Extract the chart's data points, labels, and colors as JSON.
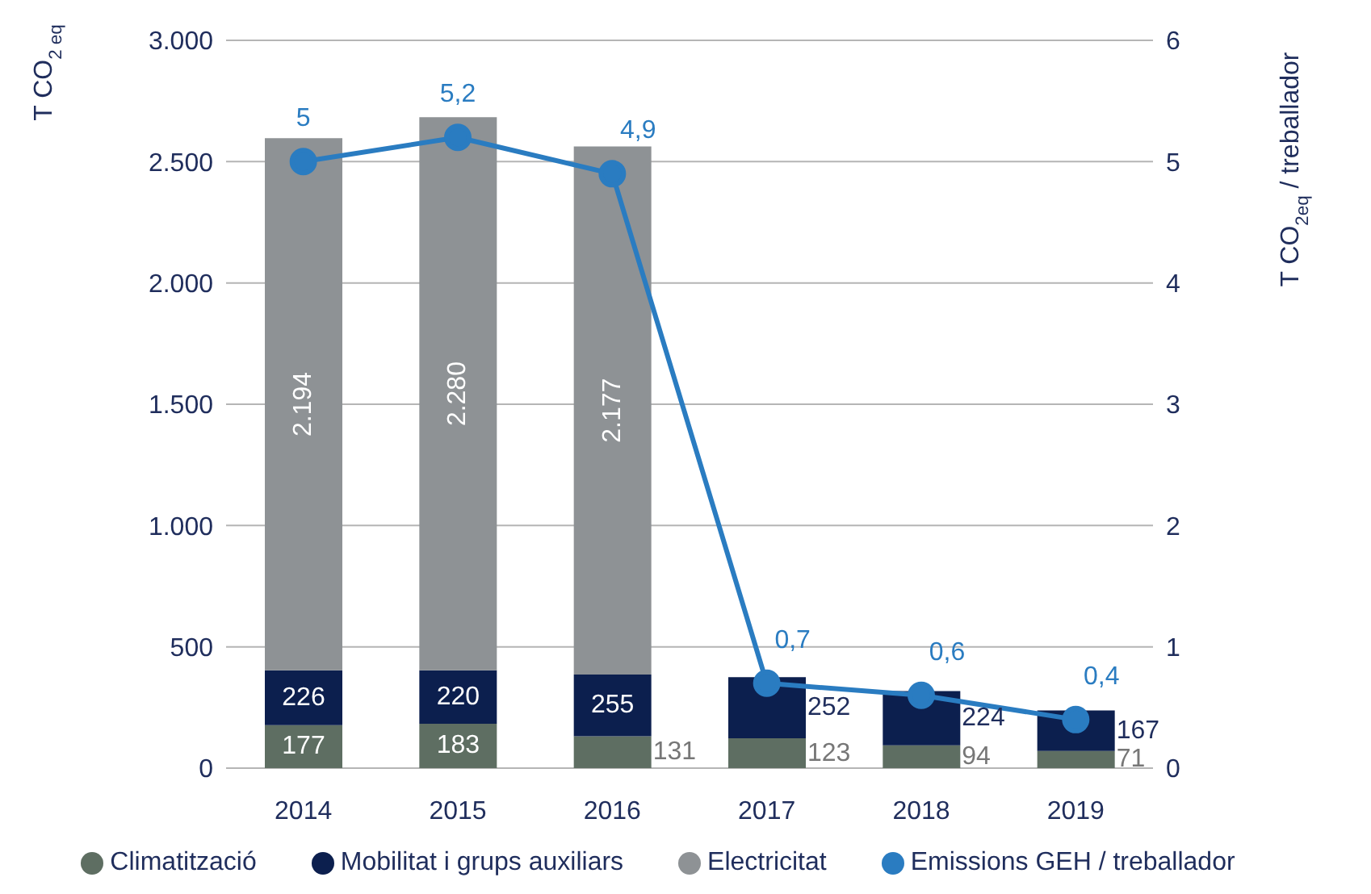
{
  "chart_data": {
    "type": "bar",
    "stacked": true,
    "categories": [
      "2014",
      "2015",
      "2016",
      "2017",
      "2018",
      "2019"
    ],
    "ylabel": "T CO$_{2 eq}$",
    "y2label": "T CO$_{2eq}$ / treballador",
    "ylim": [
      0,
      3000
    ],
    "yticks": [
      {
        "value": 0,
        "label": "0"
      },
      {
        "value": 500,
        "label": "500"
      },
      {
        "value": 1000,
        "label": "1.000"
      },
      {
        "value": 1500,
        "label": "1.500"
      },
      {
        "value": 2000,
        "label": "2.000"
      },
      {
        "value": 2500,
        "label": "2.500"
      },
      {
        "value": 3000,
        "label": "3.000"
      }
    ],
    "y2lim": [
      0,
      6
    ],
    "y2ticks": [
      0,
      1,
      2,
      3,
      4,
      5,
      6
    ],
    "grid": "y",
    "legend": "bottom",
    "series": [
      {
        "name": "Climatització",
        "color": "#5e6e62",
        "values": [
          177,
          183,
          131,
          123,
          94,
          71
        ],
        "value_labels": [
          "177",
          "183",
          "131",
          "123",
          "94",
          "71"
        ]
      },
      {
        "name": "Mobilitat i grups auxiliars",
        "color": "#0c1f4e",
        "values": [
          226,
          220,
          255,
          252,
          224,
          167
        ],
        "value_labels": [
          "226",
          "220",
          "255",
          "252",
          "224",
          "167"
        ]
      },
      {
        "name": "Electricitat",
        "color": "#8e9295",
        "values": [
          2194,
          2280,
          2177,
          null,
          null,
          null
        ],
        "value_labels": [
          "2.194",
          "2.280",
          "2.177",
          null,
          null,
          null
        ]
      },
      {
        "name": "Emissions GEH / treballador",
        "type": "line",
        "axis": "y2",
        "color": "#2a7cc1",
        "marker": "circle",
        "values": [
          5,
          5.2,
          4.9,
          0.7,
          0.6,
          0.4
        ],
        "value_labels": [
          "5",
          "5,2",
          "4,9",
          "0,7",
          "0,6",
          "0,4"
        ]
      }
    ]
  }
}
